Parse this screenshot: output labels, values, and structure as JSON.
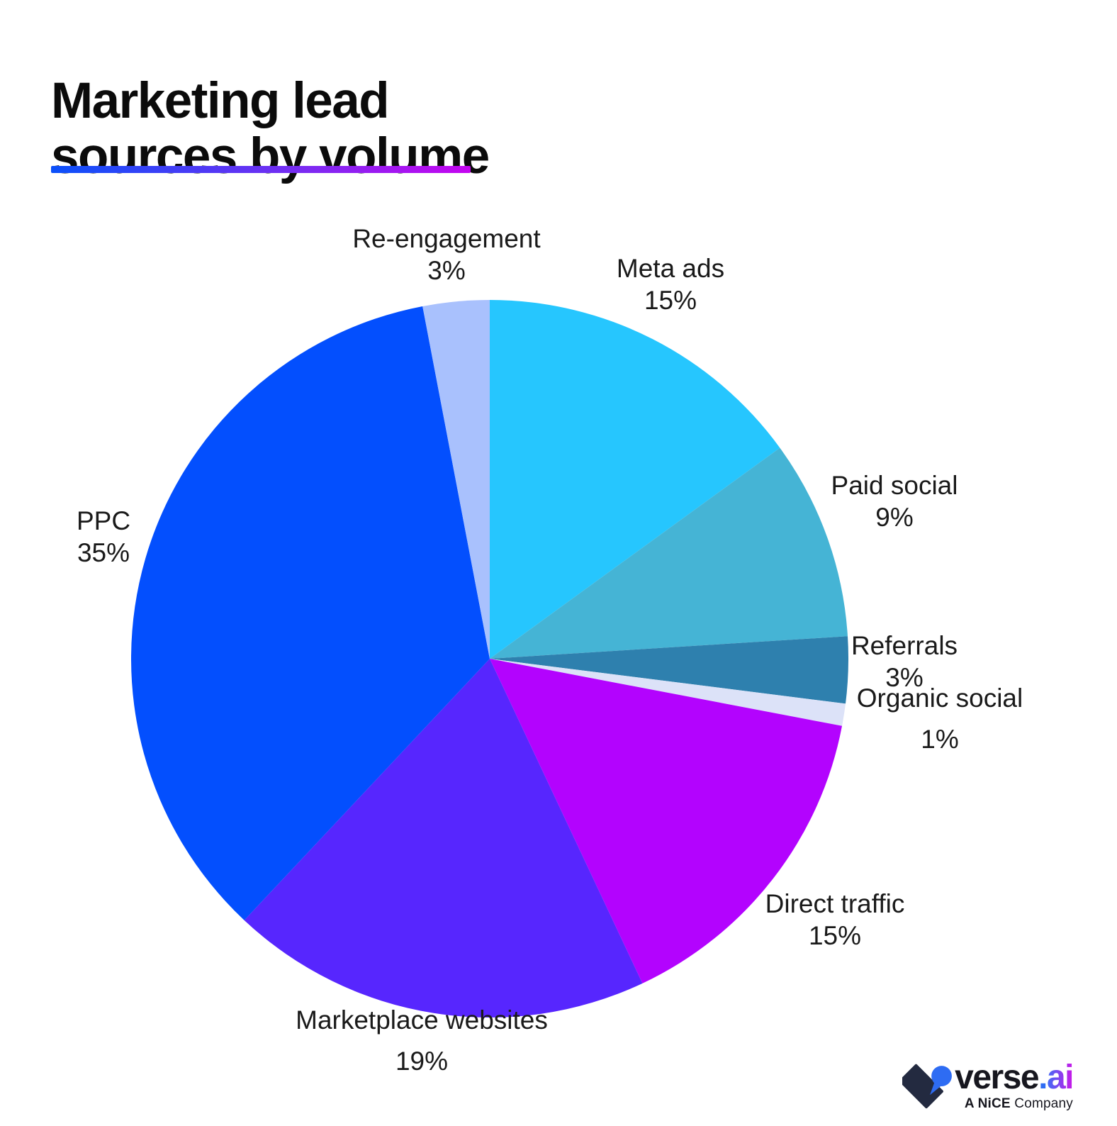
{
  "header": {
    "title": "Marketing lead sources by volume",
    "title_lines": [
      "Marketing lead",
      "sources by volume"
    ],
    "underline_gradient": [
      "#0B50FA",
      "#C505F0"
    ]
  },
  "chart_data": {
    "type": "pie",
    "title": "Marketing lead sources by volume",
    "start_angle_deg": 0,
    "direction": "clockwise",
    "legend_position": "outside-labels",
    "slices": [
      {
        "label": "Meta ads",
        "value": 15,
        "percent_label": "15%",
        "color": "#26C6FE"
      },
      {
        "label": "Paid social",
        "value": 9,
        "percent_label": "9%",
        "color": "#45B4D5"
      },
      {
        "label": "Referrals",
        "value": 3,
        "percent_label": "3%",
        "color": "#2E80AE"
      },
      {
        "label": "Organic social",
        "value": 1,
        "percent_label": "1%",
        "color": "#DCE2F8"
      },
      {
        "label": "Direct traffic",
        "value": 15,
        "percent_label": "15%",
        "color": "#B303FE"
      },
      {
        "label": "Marketplace websites",
        "value": 19,
        "percent_label": "19%",
        "color": "#5726FE"
      },
      {
        "label": "PPC",
        "value": 35,
        "percent_label": "35%",
        "color": "#034FFE"
      },
      {
        "label": "Re-engagement",
        "value": 3,
        "percent_label": "3%",
        "color": "#A9C1FD"
      }
    ]
  },
  "logo": {
    "brand": "verse",
    "dot": ".",
    "suffix": "ai",
    "tagline_bold": "A NiCE",
    "tagline_rest": "Company",
    "icon_colors": {
      "navy": "#232A40",
      "blue": "#2E6CF3"
    },
    "suffix_gradient": [
      "#3E6DF5",
      "#CC16E8"
    ]
  }
}
